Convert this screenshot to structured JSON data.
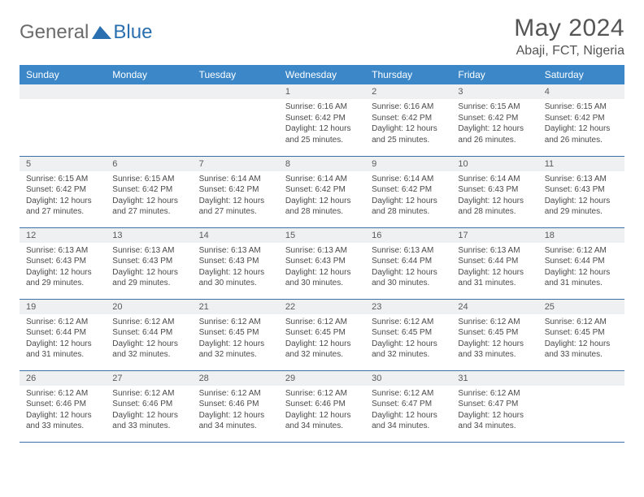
{
  "logo": {
    "general": "General",
    "blue": "Blue",
    "shape_color": "#2a6fb0"
  },
  "title": "May 2024",
  "location": "Abaji, FCT, Nigeria",
  "colors": {
    "header_bg": "#3b87c8",
    "header_text": "#ffffff",
    "daynum_bg": "#eef0f2",
    "cell_border": "#3b6fa8",
    "body_text": "#4a4a4a",
    "title_text": "#555555"
  },
  "typography": {
    "title_fontsize": 30,
    "location_fontsize": 16,
    "header_fontsize": 12,
    "daynum_fontsize": 11,
    "body_fontsize": 10
  },
  "day_headers": [
    "Sunday",
    "Monday",
    "Tuesday",
    "Wednesday",
    "Thursday",
    "Friday",
    "Saturday"
  ],
  "weeks": [
    [
      null,
      null,
      null,
      {
        "n": "1",
        "sr": "6:16 AM",
        "ss": "6:42 PM",
        "dl": "12 hours and 25 minutes."
      },
      {
        "n": "2",
        "sr": "6:16 AM",
        "ss": "6:42 PM",
        "dl": "12 hours and 25 minutes."
      },
      {
        "n": "3",
        "sr": "6:15 AM",
        "ss": "6:42 PM",
        "dl": "12 hours and 26 minutes."
      },
      {
        "n": "4",
        "sr": "6:15 AM",
        "ss": "6:42 PM",
        "dl": "12 hours and 26 minutes."
      }
    ],
    [
      {
        "n": "5",
        "sr": "6:15 AM",
        "ss": "6:42 PM",
        "dl": "12 hours and 27 minutes."
      },
      {
        "n": "6",
        "sr": "6:15 AM",
        "ss": "6:42 PM",
        "dl": "12 hours and 27 minutes."
      },
      {
        "n": "7",
        "sr": "6:14 AM",
        "ss": "6:42 PM",
        "dl": "12 hours and 27 minutes."
      },
      {
        "n": "8",
        "sr": "6:14 AM",
        "ss": "6:42 PM",
        "dl": "12 hours and 28 minutes."
      },
      {
        "n": "9",
        "sr": "6:14 AM",
        "ss": "6:42 PM",
        "dl": "12 hours and 28 minutes."
      },
      {
        "n": "10",
        "sr": "6:14 AM",
        "ss": "6:43 PM",
        "dl": "12 hours and 28 minutes."
      },
      {
        "n": "11",
        "sr": "6:13 AM",
        "ss": "6:43 PM",
        "dl": "12 hours and 29 minutes."
      }
    ],
    [
      {
        "n": "12",
        "sr": "6:13 AM",
        "ss": "6:43 PM",
        "dl": "12 hours and 29 minutes."
      },
      {
        "n": "13",
        "sr": "6:13 AM",
        "ss": "6:43 PM",
        "dl": "12 hours and 29 minutes."
      },
      {
        "n": "14",
        "sr": "6:13 AM",
        "ss": "6:43 PM",
        "dl": "12 hours and 30 minutes."
      },
      {
        "n": "15",
        "sr": "6:13 AM",
        "ss": "6:43 PM",
        "dl": "12 hours and 30 minutes."
      },
      {
        "n": "16",
        "sr": "6:13 AM",
        "ss": "6:44 PM",
        "dl": "12 hours and 30 minutes."
      },
      {
        "n": "17",
        "sr": "6:13 AM",
        "ss": "6:44 PM",
        "dl": "12 hours and 31 minutes."
      },
      {
        "n": "18",
        "sr": "6:12 AM",
        "ss": "6:44 PM",
        "dl": "12 hours and 31 minutes."
      }
    ],
    [
      {
        "n": "19",
        "sr": "6:12 AM",
        "ss": "6:44 PM",
        "dl": "12 hours and 31 minutes."
      },
      {
        "n": "20",
        "sr": "6:12 AM",
        "ss": "6:44 PM",
        "dl": "12 hours and 32 minutes."
      },
      {
        "n": "21",
        "sr": "6:12 AM",
        "ss": "6:45 PM",
        "dl": "12 hours and 32 minutes."
      },
      {
        "n": "22",
        "sr": "6:12 AM",
        "ss": "6:45 PM",
        "dl": "12 hours and 32 minutes."
      },
      {
        "n": "23",
        "sr": "6:12 AM",
        "ss": "6:45 PM",
        "dl": "12 hours and 32 minutes."
      },
      {
        "n": "24",
        "sr": "6:12 AM",
        "ss": "6:45 PM",
        "dl": "12 hours and 33 minutes."
      },
      {
        "n": "25",
        "sr": "6:12 AM",
        "ss": "6:45 PM",
        "dl": "12 hours and 33 minutes."
      }
    ],
    [
      {
        "n": "26",
        "sr": "6:12 AM",
        "ss": "6:46 PM",
        "dl": "12 hours and 33 minutes."
      },
      {
        "n": "27",
        "sr": "6:12 AM",
        "ss": "6:46 PM",
        "dl": "12 hours and 33 minutes."
      },
      {
        "n": "28",
        "sr": "6:12 AM",
        "ss": "6:46 PM",
        "dl": "12 hours and 34 minutes."
      },
      {
        "n": "29",
        "sr": "6:12 AM",
        "ss": "6:46 PM",
        "dl": "12 hours and 34 minutes."
      },
      {
        "n": "30",
        "sr": "6:12 AM",
        "ss": "6:47 PM",
        "dl": "12 hours and 34 minutes."
      },
      {
        "n": "31",
        "sr": "6:12 AM",
        "ss": "6:47 PM",
        "dl": "12 hours and 34 minutes."
      },
      null
    ]
  ],
  "labels": {
    "sunrise": "Sunrise:",
    "sunset": "Sunset:",
    "daylight": "Daylight:"
  }
}
